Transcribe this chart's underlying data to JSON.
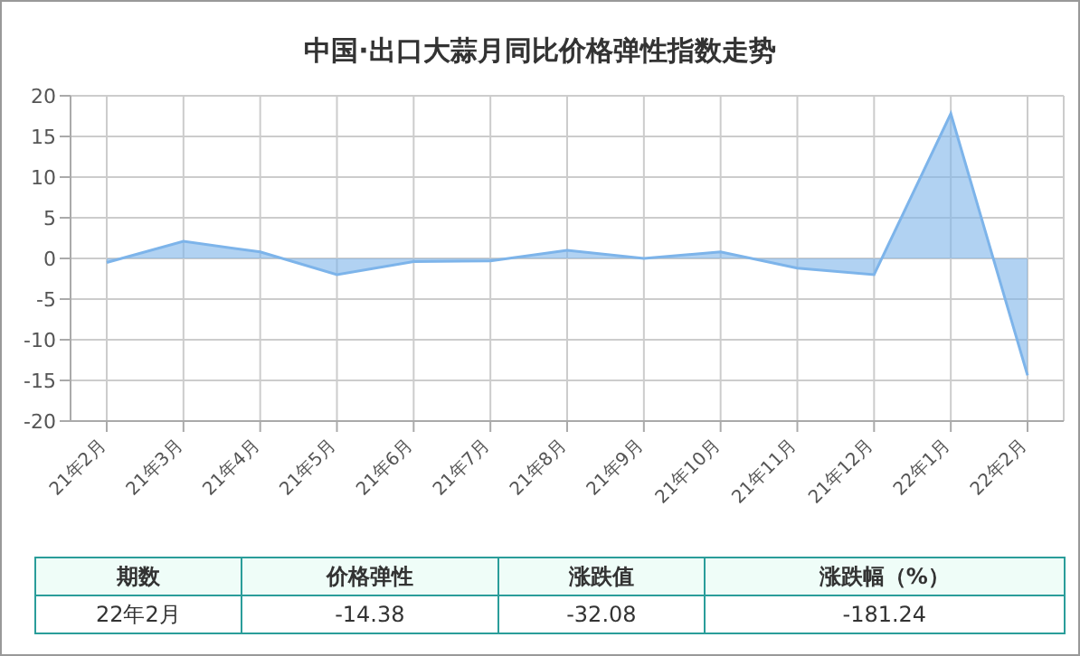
{
  "chart_data": {
    "type": "area",
    "title": "中国·出口大蒜月同比价格弹性指数走势",
    "categories": [
      "21年2月",
      "21年3月",
      "21年4月",
      "21年5月",
      "21年6月",
      "21年7月",
      "21年8月",
      "21年9月",
      "21年10月",
      "21年11月",
      "21年12月",
      "22年1月",
      "22年2月"
    ],
    "series": [
      {
        "color": "#7db4ea",
        "values": [
          -0.5,
          2.1,
          0.8,
          -2.0,
          -0.4,
          -0.3,
          1.0,
          0.0,
          0.8,
          -1.2,
          -2.0,
          17.8,
          -14.38
        ]
      }
    ],
    "ylim": [
      -20,
      20
    ],
    "yticks": [
      -20,
      -15,
      -10,
      -5,
      0,
      5,
      10,
      15,
      20
    ],
    "grid": true,
    "legend": false,
    "annotations": [
      "期数",
      "价格弹性",
      "涨跌值",
      "涨跌幅（%）",
      "22年2月",
      "-14.38",
      "-32.08",
      "-181.24"
    ]
  }
}
